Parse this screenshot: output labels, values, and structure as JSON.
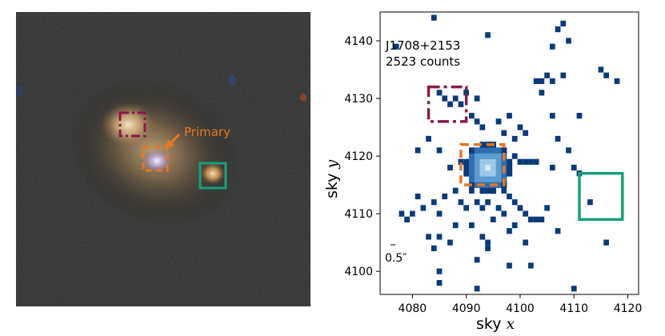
{
  "left_panel": {
    "annotation": "Primary",
    "colors": {
      "background": "#0c0d0c",
      "galaxy_core": "#e8c9a0",
      "galaxy_halo": "#6e5a3e",
      "arrow": "#e87722"
    }
  },
  "right_panel": {
    "source_name": "J1708+2153",
    "counts_text": "2523 counts",
    "scale_text": "0.5″",
    "xlabel_prefix": "sky",
    "xlabel_var": "x",
    "ylabel_prefix": "sky",
    "ylabel_var": "y",
    "colors": {
      "pixel": "#0b3a7a",
      "core_bright": "#cfe6f5",
      "core_mid": "#5a9bd0"
    }
  },
  "regions": [
    {
      "name": "secondary",
      "style": "dashdot",
      "color": "#8b1a4a",
      "x": [
        4083,
        4090
      ],
      "y": [
        4126,
        4132
      ]
    },
    {
      "name": "primary",
      "style": "dashed",
      "color": "#e87722",
      "x": [
        4089,
        4097
      ],
      "y": [
        4115,
        4122
      ]
    },
    {
      "name": "companion",
      "style": "solid",
      "color": "#17a07a",
      "x": [
        4111,
        4119
      ],
      "y": [
        4109,
        4117
      ]
    }
  ],
  "chart_data": {
    "type": "heatmap",
    "xlabel": "sky x",
    "ylabel": "sky y",
    "xlim": [
      4074,
      4122
    ],
    "ylim": [
      4096,
      4145
    ],
    "xticks": [
      4080,
      4090,
      4100,
      4110,
      4120
    ],
    "yticks": [
      4100,
      4110,
      4120,
      4130,
      4140
    ],
    "core": {
      "x": 4094,
      "y": 4118
    },
    "pixels": [
      [
        4084,
        4144
      ],
      [
        4077,
        4139
      ],
      [
        4094,
        4141
      ],
      [
        4107,
        4142
      ],
      [
        4108,
        4143
      ],
      [
        4109,
        4140
      ],
      [
        4106,
        4139
      ],
      [
        4115,
        4135
      ],
      [
        4116,
        4134
      ],
      [
        4118,
        4133
      ],
      [
        4103,
        4133
      ],
      [
        4104,
        4133
      ],
      [
        4105,
        4134
      ],
      [
        4106,
        4133
      ],
      [
        4108,
        4134
      ],
      [
        4104,
        4131
      ],
      [
        4106,
        4127
      ],
      [
        4111,
        4127
      ],
      [
        4085,
        4131
      ],
      [
        4086,
        4130
      ],
      [
        4087,
        4129
      ],
      [
        4088,
        4130
      ],
      [
        4089,
        4129
      ],
      [
        4090,
        4131
      ],
      [
        4092,
        4130
      ],
      [
        4091,
        4127
      ],
      [
        4092,
        4126
      ],
      [
        4093,
        4125
      ],
      [
        4096,
        4126
      ],
      [
        4098,
        4127
      ],
      [
        4097,
        4124
      ],
      [
        4099,
        4123
      ],
      [
        4100,
        4125
      ],
      [
        4101,
        4124
      ],
      [
        4107,
        4123
      ],
      [
        4083,
        4123
      ],
      [
        4085,
        4121
      ],
      [
        4081,
        4121
      ],
      [
        4087,
        4118
      ],
      [
        4089,
        4119
      ],
      [
        4099,
        4120
      ],
      [
        4100,
        4119
      ],
      [
        4101,
        4119
      ],
      [
        4102,
        4119
      ],
      [
        4103,
        4119
      ],
      [
        4106,
        4118
      ],
      [
        4109,
        4121
      ],
      [
        4110,
        4118
      ],
      [
        4111,
        4117
      ],
      [
        4088,
        4114
      ],
      [
        4086,
        4113
      ],
      [
        4084,
        4112
      ],
      [
        4081,
        4113
      ],
      [
        4082,
        4111
      ],
      [
        4080,
        4110
      ],
      [
        4085,
        4110
      ],
      [
        4090,
        4111
      ],
      [
        4092,
        4112
      ],
      [
        4093,
        4111
      ],
      [
        4094,
        4112
      ],
      [
        4096,
        4111
      ],
      [
        4097,
        4110
      ],
      [
        4099,
        4112
      ],
      [
        4100,
        4111
      ],
      [
        4101,
        4110
      ],
      [
        4102,
        4109
      ],
      [
        4103,
        4109
      ],
      [
        4104,
        4109
      ],
      [
        4099,
        4108
      ],
      [
        4098,
        4107
      ],
      [
        4091,
        4108
      ],
      [
        4088,
        4108
      ],
      [
        4078,
        4110
      ],
      [
        4079,
        4109
      ],
      [
        4083,
        4106
      ],
      [
        4085,
        4106
      ],
      [
        4087,
        4105
      ],
      [
        4093,
        4106
      ],
      [
        4094,
        4105
      ],
      [
        4101,
        4105
      ],
      [
        4105,
        4111
      ],
      [
        4107,
        4107
      ],
      [
        4113,
        4112
      ],
      [
        4116,
        4105
      ],
      [
        4084,
        4104
      ],
      [
        4092,
        4102
      ],
      [
        4098,
        4101
      ],
      [
        4094,
        4104
      ],
      [
        4085,
        4100
      ],
      [
        4085,
        4098
      ],
      [
        4092,
        4097
      ],
      [
        4102,
        4101
      ],
      [
        4110,
        4097
      ],
      [
        4095,
        4109
      ],
      [
        4089,
        4112
      ],
      [
        4091,
        4114
      ],
      [
        4097,
        4114
      ],
      [
        4098,
        4113
      ]
    ]
  }
}
